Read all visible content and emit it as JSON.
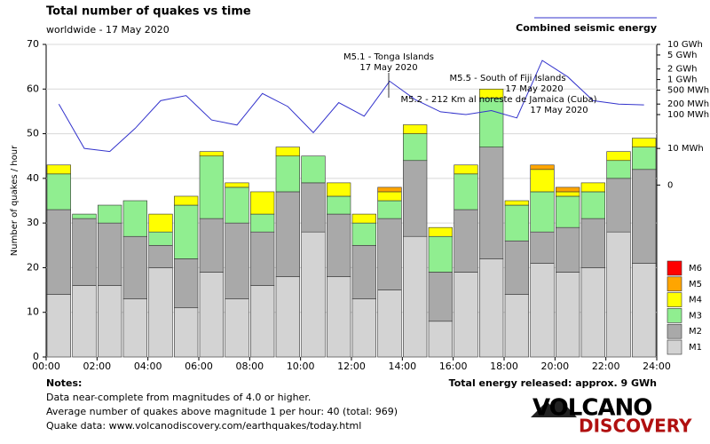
{
  "chart_data": {
    "type": "stacked-bar-line",
    "title": "Total number of quakes vs time",
    "subtitle": "worldwide - 17 May 2020",
    "y_label": "Number of quakes / hour",
    "x": [
      0,
      1,
      2,
      3,
      4,
      5,
      6,
      7,
      8,
      9,
      10,
      11,
      12,
      13,
      14,
      15,
      16,
      17,
      18,
      19,
      20,
      21,
      22,
      23
    ],
    "xlim": [
      0,
      24
    ],
    "xticks": [
      {
        "value": 0,
        "label": "00:00"
      },
      {
        "value": 2,
        "label": "02:00"
      },
      {
        "value": 4,
        "label": "04:00"
      },
      {
        "value": 6,
        "label": "06:00"
      },
      {
        "value": 8,
        "label": "08:00"
      },
      {
        "value": 10,
        "label": "10:00"
      },
      {
        "value": 12,
        "label": "12:00"
      },
      {
        "value": 14,
        "label": "14:00"
      },
      {
        "value": 16,
        "label": "16:00"
      },
      {
        "value": 18,
        "label": "18:00"
      },
      {
        "value": 20,
        "label": "20:00"
      },
      {
        "value": 22,
        "label": "22:00"
      },
      {
        "value": 24,
        "label": "24:00"
      }
    ],
    "ylim": [
      0,
      70
    ],
    "yticks": [
      0,
      10,
      20,
      30,
      40,
      50,
      60,
      70
    ],
    "grid": true,
    "series": [
      {
        "name": "M1",
        "color": "#d3d3d3",
        "values": [
          14,
          16,
          16,
          13,
          20,
          11,
          19,
          13,
          16,
          18,
          28,
          18,
          13,
          15,
          27,
          8,
          19,
          22,
          14,
          21,
          19,
          20,
          28,
          21
        ]
      },
      {
        "name": "M2",
        "color": "#a9a9a9",
        "values": [
          19,
          15,
          14,
          14,
          5,
          11,
          12,
          17,
          12,
          19,
          11,
          14,
          12,
          16,
          17,
          11,
          14,
          25,
          12,
          7,
          10,
          11,
          12,
          21
        ]
      },
      {
        "name": "M3",
        "color": "#90ee90",
        "values": [
          8,
          1,
          4,
          8,
          3,
          12,
          14,
          8,
          4,
          8,
          6,
          4,
          5,
          4,
          6,
          8,
          8,
          11,
          8,
          9,
          7,
          6,
          4,
          5
        ]
      },
      {
        "name": "M4",
        "color": "#ffff00",
        "values": [
          2,
          0,
          0,
          0,
          4,
          2,
          1,
          1,
          5,
          2,
          0,
          3,
          2,
          2,
          2,
          2,
          2,
          2,
          1,
          5,
          1,
          2,
          2,
          2
        ]
      },
      {
        "name": "M5",
        "color": "#ffa500",
        "values": [
          0,
          0,
          0,
          0,
          0,
          0,
          0,
          0,
          0,
          0,
          0,
          0,
          0,
          1,
          0,
          0,
          0,
          0,
          0,
          1,
          1,
          0,
          0,
          0
        ]
      },
      {
        "name": "M6",
        "color": "#ff0000",
        "values": [
          0,
          0,
          0,
          0,
          0,
          0,
          0,
          0,
          0,
          0,
          0,
          0,
          0,
          0,
          0,
          0,
          0,
          0,
          0,
          0,
          0,
          0,
          0,
          0
        ]
      }
    ],
    "energy": {
      "name": "Combined seismic energy",
      "color": "#3333cc",
      "axis": "y2",
      "values": [
        200,
        10,
        8,
        40,
        250,
        350,
        70,
        50,
        400,
        170,
        30,
        220,
        90,
        900,
        270,
        120,
        100,
        130,
        80,
        3500,
        1200,
        250,
        200,
        190
      ]
    },
    "y2scale": "log1p",
    "y2lim": [
      0,
      10000
    ],
    "y2ticks": [
      {
        "value": 10000,
        "label": "10 GWh"
      },
      {
        "value": 5000,
        "label": "5 GWh"
      },
      {
        "value": 2000,
        "label": "2 GWh"
      },
      {
        "value": 1000,
        "label": "1 GWh"
      },
      {
        "value": 500,
        "label": "500 MWh"
      },
      {
        "value": 200,
        "label": "200 MWh"
      },
      {
        "value": 100,
        "label": "100 MWh"
      },
      {
        "value": 10,
        "label": "10 MWh"
      },
      0
    ],
    "annotations": [
      {
        "text": [
          "M5.1 - Tonga Islands",
          "17 May 2020"
        ]
      },
      {
        "text": [
          "M5.5 - South of Fiji Islands",
          "17 May 2020"
        ]
      },
      {
        "text": [
          "M5.2 - 212 Km al noreste de Jamaica (Cuba)",
          "17 May 2020"
        ]
      }
    ],
    "total_energy": "Total energy released: approx. 9 GWh"
  },
  "notes": {
    "heading": "Notes:",
    "lines": [
      "Data near-complete from magnitudes of 4.0 or higher.",
      "Average number of quakes above magnitude 1 per hour: 40 (total: 969)",
      "Quake data: www.volcanodiscovery.com/earthquakes/today.html"
    ]
  },
  "logo": {
    "line1": "VOLCANO",
    "line2": "DISCOVERY"
  }
}
